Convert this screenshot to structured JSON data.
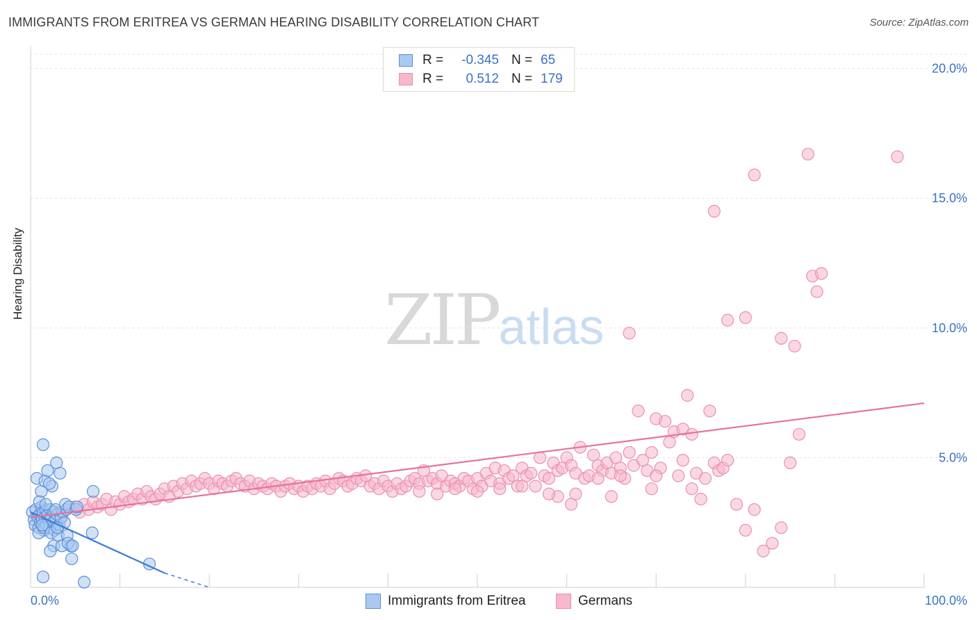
{
  "title": "IMMIGRANTS FROM ERITREA VS GERMAN HEARING DISABILITY CORRELATION CHART",
  "source": "Source: ZipAtlas.com",
  "watermark": {
    "zip": "ZIP",
    "atlas": "atlas"
  },
  "legend": {
    "rows": [
      {
        "r_label": "R =",
        "r_value": "-0.345",
        "n_label": "N =",
        "n_value": "65"
      },
      {
        "r_label": "R =",
        "r_value": "0.512",
        "n_label": "N =",
        "n_value": "179"
      }
    ]
  },
  "bottom_legend": [
    "Immigrants from Eritrea",
    "Germans"
  ],
  "colors": {
    "blue_fill": "#aac8f0",
    "blue_stroke": "#5b8fd6",
    "blue_line": "#3a7bd5",
    "pink_fill": "#f5b8cc",
    "pink_stroke": "#ea8fae",
    "pink_line": "#e8719a",
    "tick_text": "#3a72c6",
    "grid": "#e0e0e0"
  },
  "chart_data": {
    "type": "scatter",
    "title": "IMMIGRANTS FROM ERITREA VS GERMAN HEARING DISABILITY CORRELATION CHART",
    "xlabel": "",
    "ylabel": "Hearing Disability",
    "xlim": [
      0,
      100
    ],
    "ylim": [
      0,
      20.5
    ],
    "x_tick_labels": [
      "0.0%",
      "100.0%"
    ],
    "y_ticks": [
      5,
      10,
      15,
      20
    ],
    "y_tick_labels": [
      "5.0%",
      "10.0%",
      "15.0%",
      "20.0%"
    ],
    "grid": true,
    "legend_position": "top-center",
    "series": [
      {
        "name": "Immigrants from Eritrea",
        "color": "#aac8f0",
        "points": [
          [
            0.2,
            2.9
          ],
          [
            0.4,
            2.6
          ],
          [
            0.5,
            2.4
          ],
          [
            0.6,
            3.0
          ],
          [
            0.8,
            2.7
          ],
          [
            0.9,
            2.3
          ],
          [
            1.0,
            2.8
          ],
          [
            1.1,
            2.5
          ],
          [
            1.2,
            3.1
          ],
          [
            1.3,
            2.6
          ],
          [
            1.4,
            2.9
          ],
          [
            1.5,
            2.2
          ],
          [
            1.6,
            2.7
          ],
          [
            1.7,
            3.0
          ],
          [
            1.8,
            2.4
          ],
          [
            1.9,
            2.8
          ],
          [
            2.0,
            2.6
          ],
          [
            2.1,
            2.3
          ],
          [
            2.2,
            3.0
          ],
          [
            2.3,
            2.7
          ],
          [
            2.5,
            2.5
          ],
          [
            2.6,
            2.9
          ],
          [
            2.7,
            2.2
          ],
          [
            2.8,
            2.6
          ],
          [
            3.0,
            2.8
          ],
          [
            3.2,
            2.4
          ],
          [
            3.4,
            2.7
          ],
          [
            3.6,
            2.9
          ],
          [
            3.8,
            2.5
          ],
          [
            4.0,
            3.0
          ],
          [
            0.7,
            4.2
          ],
          [
            1.2,
            3.7
          ],
          [
            1.6,
            4.1
          ],
          [
            1.9,
            4.5
          ],
          [
            2.4,
            3.9
          ],
          [
            2.9,
            4.8
          ],
          [
            3.3,
            4.4
          ],
          [
            1.4,
            5.5
          ],
          [
            2.1,
            4.0
          ],
          [
            1.0,
            3.3
          ],
          [
            1.7,
            3.2
          ],
          [
            2.8,
            3.0
          ],
          [
            3.9,
            3.2
          ],
          [
            4.3,
            3.1
          ],
          [
            5.1,
            3.0
          ],
          [
            5.2,
            3.1
          ],
          [
            0.9,
            2.1
          ],
          [
            1.5,
            2.3
          ],
          [
            2.3,
            2.1
          ],
          [
            3.1,
            2.0
          ],
          [
            2.6,
            1.6
          ],
          [
            3.5,
            1.6
          ],
          [
            4.1,
            2.0
          ],
          [
            4.5,
            1.6
          ],
          [
            4.2,
            1.7
          ],
          [
            2.2,
            1.4
          ],
          [
            4.6,
            1.1
          ],
          [
            7.0,
            3.7
          ],
          [
            6.9,
            2.1
          ],
          [
            13.3,
            0.9
          ],
          [
            1.4,
            0.4
          ],
          [
            6.0,
            0.2
          ],
          [
            4.7,
            1.6
          ],
          [
            3.0,
            2.3
          ],
          [
            1.3,
            2.4
          ]
        ]
      },
      {
        "name": "Germans",
        "color": "#f5b8cc",
        "points": [
          [
            1.0,
            2.8
          ],
          [
            2.0,
            2.6
          ],
          [
            3.0,
            2.9
          ],
          [
            3.5,
            2.7
          ],
          [
            4.0,
            3.0
          ],
          [
            5.0,
            3.1
          ],
          [
            5.5,
            2.9
          ],
          [
            6.0,
            3.2
          ],
          [
            6.5,
            3.0
          ],
          [
            7.0,
            3.3
          ],
          [
            7.5,
            3.1
          ],
          [
            8.0,
            3.2
          ],
          [
            8.5,
            3.4
          ],
          [
            9.0,
            3.0
          ],
          [
            9.5,
            3.3
          ],
          [
            10.0,
            3.2
          ],
          [
            10.5,
            3.5
          ],
          [
            11.0,
            3.3
          ],
          [
            11.5,
            3.4
          ],
          [
            12.0,
            3.6
          ],
          [
            12.5,
            3.4
          ],
          [
            13.0,
            3.7
          ],
          [
            13.5,
            3.5
          ],
          [
            14.0,
            3.4
          ],
          [
            14.5,
            3.6
          ],
          [
            15.0,
            3.8
          ],
          [
            15.5,
            3.5
          ],
          [
            16.0,
            3.9
          ],
          [
            16.5,
            3.7
          ],
          [
            17.0,
            4.0
          ],
          [
            17.5,
            3.8
          ],
          [
            18.0,
            4.1
          ],
          [
            18.5,
            3.9
          ],
          [
            19.0,
            4.0
          ],
          [
            19.5,
            4.2
          ],
          [
            20.0,
            4.0
          ],
          [
            20.5,
            3.8
          ],
          [
            21.0,
            4.1
          ],
          [
            21.5,
            4.0
          ],
          [
            22.0,
            3.9
          ],
          [
            22.5,
            4.1
          ],
          [
            23.0,
            4.2
          ],
          [
            23.5,
            4.0
          ],
          [
            24.0,
            3.9
          ],
          [
            24.5,
            4.1
          ],
          [
            25.0,
            3.8
          ],
          [
            25.5,
            4.0
          ],
          [
            26.0,
            3.9
          ],
          [
            26.5,
            3.8
          ],
          [
            27.0,
            4.0
          ],
          [
            27.5,
            3.9
          ],
          [
            28.0,
            3.7
          ],
          [
            28.5,
            3.9
          ],
          [
            29.0,
            4.0
          ],
          [
            29.5,
            3.8
          ],
          [
            30.0,
            3.9
          ],
          [
            30.5,
            3.7
          ],
          [
            31.0,
            3.9
          ],
          [
            31.5,
            3.8
          ],
          [
            32.0,
            4.0
          ],
          [
            32.5,
            3.9
          ],
          [
            33.0,
            4.1
          ],
          [
            33.5,
            3.8
          ],
          [
            34.0,
            4.0
          ],
          [
            34.5,
            4.2
          ],
          [
            35.0,
            4.1
          ],
          [
            35.5,
            3.9
          ],
          [
            36.0,
            4.0
          ],
          [
            36.5,
            4.2
          ],
          [
            37.0,
            4.1
          ],
          [
            37.5,
            4.3
          ],
          [
            38.0,
            3.9
          ],
          [
            38.5,
            4.0
          ],
          [
            39.0,
            3.8
          ],
          [
            39.5,
            4.1
          ],
          [
            40.0,
            3.9
          ],
          [
            40.5,
            3.7
          ],
          [
            41.0,
            4.0
          ],
          [
            41.5,
            3.8
          ],
          [
            42.0,
            3.9
          ],
          [
            42.5,
            4.1
          ],
          [
            43.0,
            4.2
          ],
          [
            43.5,
            4.0
          ],
          [
            44.0,
            4.5
          ],
          [
            44.5,
            4.1
          ],
          [
            45.0,
            4.2
          ],
          [
            45.5,
            4.0
          ],
          [
            46.0,
            4.3
          ],
          [
            46.5,
            3.9
          ],
          [
            47.0,
            4.1
          ],
          [
            47.5,
            4.0
          ],
          [
            48.0,
            3.9
          ],
          [
            48.5,
            4.2
          ],
          [
            49.0,
            4.1
          ],
          [
            49.5,
            3.8
          ],
          [
            50.0,
            4.2
          ],
          [
            50.5,
            3.9
          ],
          [
            51.0,
            4.4
          ],
          [
            51.5,
            4.1
          ],
          [
            52.0,
            4.6
          ],
          [
            52.5,
            4.0
          ],
          [
            53.0,
            4.5
          ],
          [
            53.5,
            4.2
          ],
          [
            54.0,
            4.3
          ],
          [
            54.5,
            3.9
          ],
          [
            55.0,
            4.6
          ],
          [
            55.5,
            4.3
          ],
          [
            56.0,
            4.4
          ],
          [
            56.5,
            3.9
          ],
          [
            57.0,
            5.0
          ],
          [
            57.5,
            4.3
          ],
          [
            58.0,
            4.2
          ],
          [
            58.5,
            4.8
          ],
          [
            59.0,
            4.5
          ],
          [
            59.5,
            4.6
          ],
          [
            60.0,
            5.0
          ],
          [
            60.5,
            4.7
          ],
          [
            61.0,
            4.4
          ],
          [
            61.5,
            5.4
          ],
          [
            62.0,
            4.2
          ],
          [
            62.5,
            4.3
          ],
          [
            63.0,
            5.1
          ],
          [
            63.5,
            4.7
          ],
          [
            64.0,
            4.5
          ],
          [
            64.5,
            4.8
          ],
          [
            65.0,
            4.4
          ],
          [
            65.5,
            5.0
          ],
          [
            66.0,
            4.6
          ],
          [
            66.5,
            4.2
          ],
          [
            67.0,
            5.2
          ],
          [
            67.5,
            4.7
          ],
          [
            68.0,
            6.8
          ],
          [
            68.5,
            4.9
          ],
          [
            69.0,
            4.5
          ],
          [
            69.5,
            5.2
          ],
          [
            70.0,
            6.5
          ],
          [
            70.5,
            4.6
          ],
          [
            71.0,
            6.4
          ],
          [
            71.5,
            5.6
          ],
          [
            72.0,
            6.0
          ],
          [
            72.5,
            4.3
          ],
          [
            73.0,
            6.1
          ],
          [
            73.5,
            7.4
          ],
          [
            74.0,
            5.9
          ],
          [
            74.5,
            4.4
          ],
          [
            75.0,
            3.4
          ],
          [
            75.5,
            4.2
          ],
          [
            76.0,
            6.8
          ],
          [
            76.5,
            4.8
          ],
          [
            77.0,
            4.5
          ],
          [
            77.5,
            4.6
          ],
          [
            78.0,
            4.9
          ],
          [
            79.0,
            3.2
          ],
          [
            80.0,
            2.2
          ],
          [
            81.0,
            3.0
          ],
          [
            82.0,
            1.4
          ],
          [
            83.0,
            1.7
          ],
          [
            84.0,
            2.3
          ],
          [
            85.0,
            4.8
          ],
          [
            86.0,
            5.9
          ],
          [
            70.0,
            4.3
          ],
          [
            65.0,
            3.5
          ],
          [
            61.0,
            3.6
          ],
          [
            60.5,
            3.2
          ],
          [
            69.5,
            3.8
          ],
          [
            67.0,
            9.8
          ],
          [
            78.0,
            10.3
          ],
          [
            80.0,
            10.4
          ],
          [
            84.0,
            9.6
          ],
          [
            85.5,
            9.3
          ],
          [
            76.5,
            14.5
          ],
          [
            81.0,
            15.9
          ],
          [
            87.0,
            16.7
          ],
          [
            87.5,
            12.0
          ],
          [
            88.5,
            12.1
          ],
          [
            88.0,
            11.4
          ],
          [
            97.0,
            16.6
          ],
          [
            73.0,
            4.9
          ],
          [
            59.0,
            3.5
          ],
          [
            63.5,
            4.2
          ],
          [
            66.0,
            4.3
          ],
          [
            74.0,
            3.8
          ],
          [
            58.0,
            3.6
          ],
          [
            55.0,
            3.9
          ],
          [
            52.5,
            3.8
          ],
          [
            50.0,
            3.7
          ],
          [
            47.5,
            3.8
          ],
          [
            45.5,
            3.6
          ],
          [
            43.5,
            3.7
          ]
        ]
      }
    ],
    "trendlines": [
      {
        "series": "Immigrants from Eritrea",
        "x": [
          0,
          15
        ],
        "y": [
          2.9,
          0.55
        ],
        "dashed_extension_to": [
          20,
          0.0
        ]
      },
      {
        "series": "Germans",
        "x": [
          0,
          100
        ],
        "y": [
          2.7,
          7.1
        ]
      }
    ]
  }
}
